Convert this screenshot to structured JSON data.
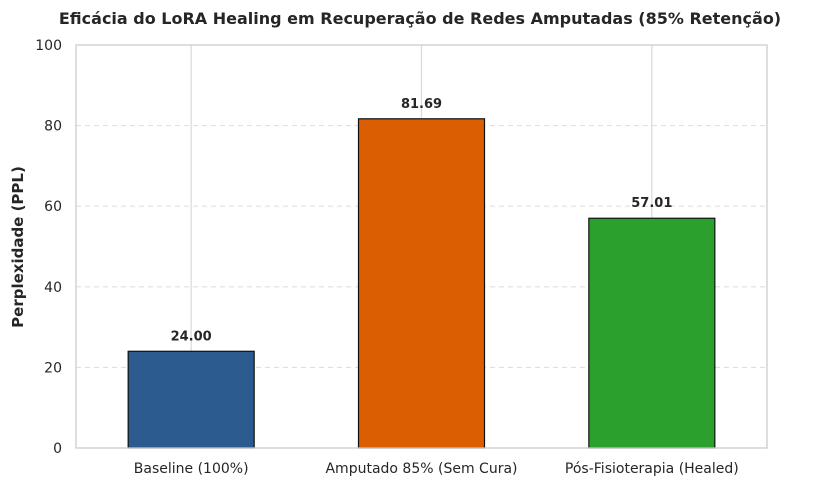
{
  "chart_data": {
    "type": "bar",
    "title": "Eficácia do LoRA Healing em Recuperação de Redes Amputadas (85% Retenção)",
    "xlabel": "",
    "ylabel": "Perplexidade (PPL)",
    "ylim": [
      0,
      100
    ],
    "yticks": [
      0,
      20,
      40,
      60,
      80,
      100
    ],
    "categories": [
      "Baseline (100%)",
      "Amputado 85% (Sem Cura)",
      "Pós-Fisioterapia (Healed)"
    ],
    "values": [
      24.0,
      81.69,
      57.01
    ],
    "data_labels": [
      "24.00",
      "81.69",
      "57.01"
    ],
    "colors": [
      "#2b5b8f",
      "#db5f02",
      "#2ca02c"
    ],
    "grid": true,
    "legend": "none"
  }
}
